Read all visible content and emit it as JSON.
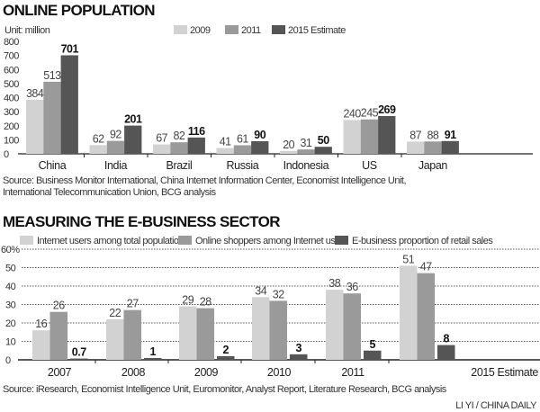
{
  "colors": {
    "light": "#d2d2d2",
    "mid": "#9a9a9a",
    "dark": "#555555"
  },
  "credit": "LI YI / CHINA DAILY",
  "chart_data": [
    {
      "type": "bar",
      "title": "ONLINE POPULATION",
      "unit": "Unit: million",
      "categories": [
        "China",
        "India",
        "Brazil",
        "Russia",
        "Indonesia",
        "US",
        "Japan"
      ],
      "series": [
        {
          "name": "2009",
          "values": [
            384,
            62,
            67,
            41,
            20,
            240,
            87
          ]
        },
        {
          "name": "2011",
          "values": [
            513,
            92,
            82,
            61,
            31,
            245,
            88
          ]
        },
        {
          "name": "2015 Estimate",
          "values": [
            701,
            201,
            116,
            90,
            50,
            269,
            91
          ]
        }
      ],
      "ylim": [
        0,
        800
      ],
      "yticks": [
        "0",
        "100",
        "200",
        "300",
        "400",
        "500",
        "600",
        "700",
        "800"
      ],
      "grid": false,
      "legend": "top",
      "source": [
        "Source: Business Monitor International, China Internet Information Center, Economist Intelligence Unit,",
        "International Telecommunication Union, BCG analysis"
      ]
    },
    {
      "type": "bar",
      "title": "MEASURING THE E-BUSINESS SECTOR",
      "categories": [
        "2007",
        "2008",
        "2009",
        "2010",
        "2011",
        "2015 Estimate"
      ],
      "series": [
        {
          "name": "Internet users among total population",
          "values": [
            16,
            22,
            29,
            34,
            38,
            51
          ],
          "labels": [
            "16",
            "22",
            "29",
            "34",
            "38",
            "51"
          ]
        },
        {
          "name": "Online shoppers among Internet users",
          "values": [
            26,
            27,
            28,
            32,
            36,
            47
          ],
          "labels": [
            "26",
            "27",
            "28",
            "32",
            "36",
            "47"
          ]
        },
        {
          "name": "E-business proportion of retail sales",
          "values": [
            0.7,
            1,
            2,
            3,
            5,
            8
          ],
          "labels": [
            "0.7",
            "1",
            "2",
            "3",
            "5",
            "8"
          ]
        }
      ],
      "ylim": [
        0,
        60
      ],
      "yticks": [
        "0",
        "10",
        "20",
        "30",
        "40",
        "50",
        "60%"
      ],
      "grid": true,
      "legend": "top",
      "source": [
        "Source: iResearch, Economist Intelligence Unit, Euromonitor, Analyst Report, Literature Research, BCG analysis"
      ]
    }
  ]
}
